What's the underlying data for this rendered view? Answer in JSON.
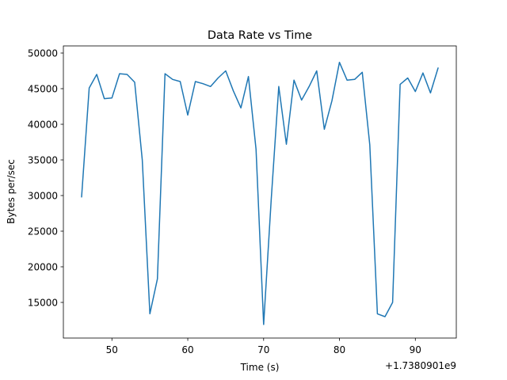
{
  "chart_data": {
    "type": "line",
    "title": "Data Rate vs Time",
    "xlabel": "Time (s)",
    "ylabel": "Bytes per/sec",
    "x_offset_label": "+1.7380901e9",
    "xlim": [
      43.6,
      95.4
    ],
    "ylim": [
      10000,
      51000
    ],
    "x_ticks": [
      50,
      60,
      70,
      80,
      90
    ],
    "y_ticks": [
      15000,
      20000,
      25000,
      30000,
      35000,
      40000,
      45000,
      50000
    ],
    "grid": false,
    "series": [
      {
        "color": "#1f77b4",
        "x": [
          46,
          47,
          48,
          49,
          50,
          51,
          52,
          53,
          54,
          55,
          56,
          57,
          58,
          59,
          60,
          61,
          62,
          63,
          64,
          65,
          66,
          67,
          68,
          69,
          70,
          71,
          72,
          73,
          74,
          75,
          76,
          77,
          78,
          79,
          80,
          81,
          82,
          83,
          84,
          85,
          86,
          87,
          88,
          89,
          90,
          91,
          92,
          93
        ],
        "y": [
          29800,
          45100,
          47000,
          43600,
          43700,
          47100,
          47000,
          45900,
          35000,
          13400,
          18300,
          47100,
          46300,
          46000,
          41300,
          46000,
          45700,
          45300,
          46500,
          47500,
          44700,
          42300,
          46700,
          36500,
          11900,
          29500,
          45300,
          37200,
          46200,
          43400,
          45300,
          47500,
          39300,
          43300,
          48700,
          46200,
          46300,
          47300,
          37100,
          13400,
          13000,
          15000,
          45600,
          46500,
          44600,
          47200,
          44400,
          47900
        ]
      }
    ]
  }
}
